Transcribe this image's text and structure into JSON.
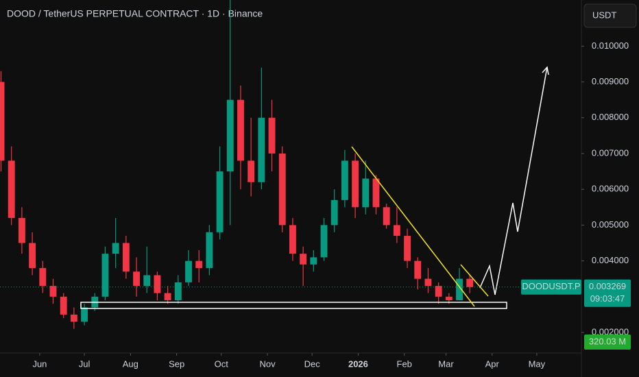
{
  "chart_data": {
    "type": "candlestick",
    "title": "DOOD / TetherUS PERPETUAL CONTRACT · 1D · Binance",
    "currency": "USDT",
    "symbol": "DOODUSDT.P",
    "last_price": {
      "value": 0.003269,
      "label": "0.003269"
    },
    "countdown": "09:03:47",
    "volume_label": "320.03 M",
    "up_color": "#089981",
    "down_color": "#f23645",
    "x": [
      -26,
      -19,
      -12,
      -5,
      2,
      9,
      16,
      23,
      30,
      37,
      44,
      51,
      58,
      65,
      72,
      79,
      86,
      93,
      100,
      107,
      114,
      121,
      128,
      135,
      142,
      149,
      156,
      163,
      170,
      177,
      184,
      191,
      198,
      205,
      212,
      219,
      226,
      233,
      240,
      247,
      254,
      261,
      268,
      275,
      282,
      289
    ],
    "open": [
      0.009,
      0.0068,
      0.0052,
      0.0045,
      0.0038,
      0.0033,
      0.003,
      0.0025,
      0.0023,
      0.0027,
      0.003,
      0.0042,
      0.0045,
      0.0037,
      0.0033,
      0.0036,
      0.0031,
      0.0029,
      0.0034,
      0.004,
      0.0038,
      0.0048,
      0.0065,
      0.0085,
      0.0068,
      0.0062,
      0.008,
      0.007,
      0.005,
      0.0042,
      0.0039,
      0.0041,
      0.005,
      0.0057,
      0.0068,
      0.0055,
      0.0063,
      0.0055,
      0.005,
      0.0047,
      0.004,
      0.0035,
      0.0033,
      0.003,
      0.0029,
      0.0035
    ],
    "high": [
      0.0093,
      0.0072,
      0.0055,
      0.0048,
      0.004,
      0.0035,
      0.0031,
      0.0027,
      0.0028,
      0.0031,
      0.0044,
      0.0052,
      0.0047,
      0.0041,
      0.0044,
      0.0037,
      0.0033,
      0.0036,
      0.0043,
      0.0043,
      0.005,
      0.0072,
      0.0114,
      0.0089,
      0.008,
      0.0094,
      0.0085,
      0.0072,
      0.0052,
      0.0044,
      0.0043,
      0.0052,
      0.006,
      0.0071,
      0.007,
      0.0068,
      0.0064,
      0.0056,
      0.0055,
      0.0049,
      0.0041,
      0.0038,
      0.0034,
      0.0031,
      0.0038,
      0.0036
    ],
    "low": [
      0.0065,
      0.005,
      0.0042,
      0.0036,
      0.0031,
      0.0028,
      0.0024,
      0.0021,
      0.0022,
      0.0026,
      0.0029,
      0.0038,
      0.0035,
      0.003,
      0.0031,
      0.0029,
      0.0028,
      0.0028,
      0.0033,
      0.0034,
      0.0036,
      0.0046,
      0.005,
      0.006,
      0.0058,
      0.006,
      0.0065,
      0.0048,
      0.004,
      0.0033,
      0.0037,
      0.004,
      0.0048,
      0.0055,
      0.0052,
      0.0053,
      0.0053,
      0.0049,
      0.0045,
      0.0038,
      0.0032,
      0.0031,
      0.0028,
      0.0028,
      0.0029,
      0.0031
    ],
    "close": [
      0.0068,
      0.0052,
      0.0045,
      0.0038,
      0.0033,
      0.003,
      0.0025,
      0.0023,
      0.0027,
      0.003,
      0.0042,
      0.0045,
      0.0037,
      0.0033,
      0.0036,
      0.0031,
      0.0029,
      0.0034,
      0.004,
      0.0038,
      0.0048,
      0.0065,
      0.0085,
      0.0068,
      0.0062,
      0.008,
      0.007,
      0.005,
      0.0042,
      0.0039,
      0.0041,
      0.005,
      0.0057,
      0.0068,
      0.0055,
      0.0063,
      0.0055,
      0.005,
      0.0047,
      0.004,
      0.0035,
      0.0033,
      0.003,
      0.0029,
      0.0035,
      0.003269
    ],
    "xlim": [
      -26.7,
      364
    ],
    "xticks": [
      {
        "value": 0,
        "label": "Jun"
      },
      {
        "value": 30,
        "label": "Jul"
      },
      {
        "value": 61,
        "label": "Aug"
      },
      {
        "value": 92,
        "label": "Sep"
      },
      {
        "value": 122,
        "label": "Oct"
      },
      {
        "value": 153,
        "label": "Nov"
      },
      {
        "value": 183,
        "label": "Dec"
      },
      {
        "value": 214,
        "label": "2026"
      },
      {
        "value": 245,
        "label": "Feb"
      },
      {
        "value": 273,
        "label": "Mar"
      },
      {
        "value": 304,
        "label": "Apr"
      },
      {
        "value": 334,
        "label": "May"
      }
    ],
    "ylim": [
      0.00133,
      0.01129
    ],
    "yticks": [
      {
        "value": 0.002,
        "label": "0.002000"
      },
      {
        "value": 0.004,
        "label": "0.004000"
      },
      {
        "value": 0.005,
        "label": "0.005000"
      },
      {
        "value": 0.006,
        "label": "0.006000"
      },
      {
        "value": 0.007,
        "label": "0.007000"
      },
      {
        "value": 0.008,
        "label": "0.008000"
      },
      {
        "value": 0.009,
        "label": "0.009000"
      },
      {
        "value": 0.01,
        "label": "0.010000"
      }
    ],
    "grid": false
  }
}
